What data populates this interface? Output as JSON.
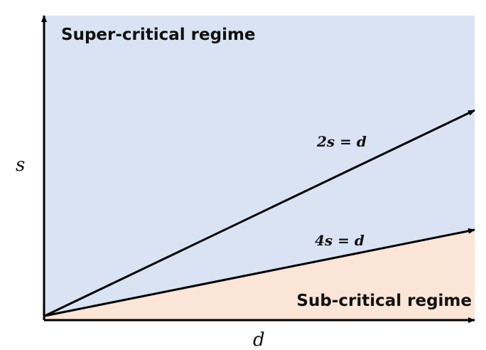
{
  "diagram": {
    "regions": {
      "super_critical": "Super-critical regime",
      "sub_critical": "Sub-critical regime"
    },
    "lines": {
      "upper": "2s = d",
      "lower": "4s = d"
    },
    "axes": {
      "x": "d",
      "y": "s"
    },
    "colors": {
      "super_critical_fill": "#dae3f3",
      "sub_critical_fill": "#fbe5d6",
      "line": "#000000"
    }
  }
}
